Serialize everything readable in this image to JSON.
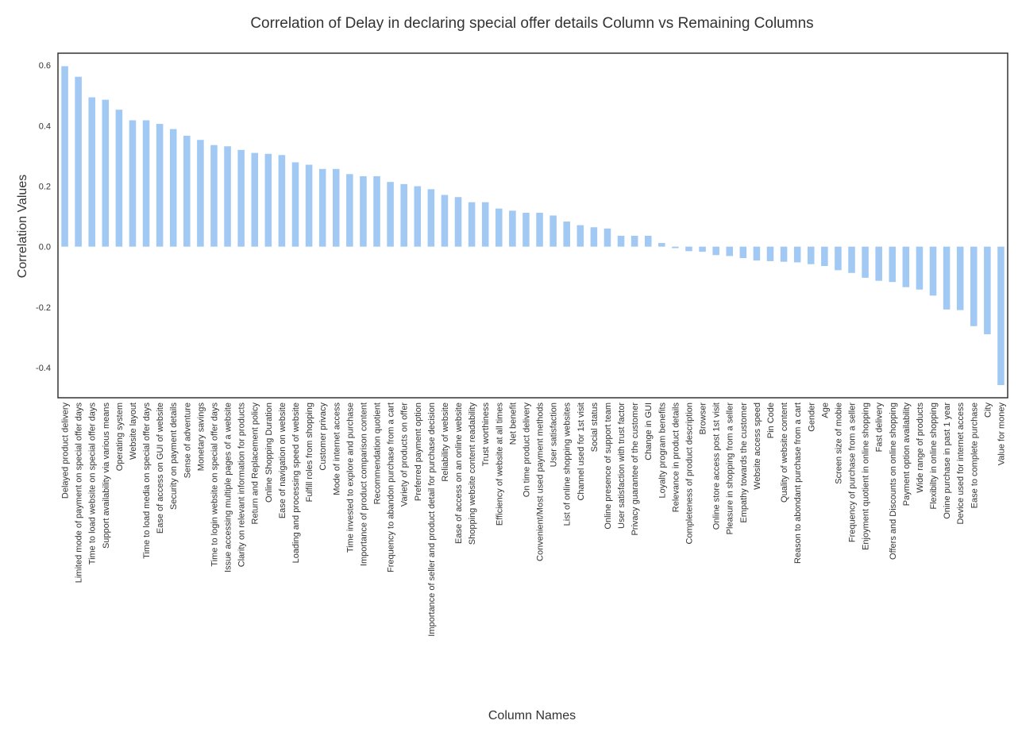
{
  "chart_data": {
    "type": "bar",
    "title": "Correlation of Delay in declaring special offer details Column vs Remaining Columns",
    "xlabel": "Column Names",
    "ylabel": "Correlation Values",
    "ylim": [
      -0.5,
      0.64
    ],
    "yticks": [
      "0.6",
      "0.4",
      "0.2",
      "0.0",
      "-0.2",
      "-0.4"
    ],
    "ytick_values": [
      0.6,
      0.4,
      0.2,
      0.0,
      -0.2,
      -0.4
    ],
    "grid": false,
    "legend": "none",
    "colors": {
      "bar": "#a1c9f4",
      "frame": "#333333",
      "text": "#333333"
    },
    "categories": [
      "Delayed product delivery",
      "Limited mode of payment on special offer days",
      "Time to load website on special offer days",
      "Support availability via various means",
      "Operating system",
      "Website layout",
      "Time to load media on special offer days",
      "Ease of access on GUI of website",
      "Security on payment details",
      "Sense of adventure",
      "Monetary savings",
      "Time to login website on special offer days",
      "Issue accessing multiple pages of a website",
      "Clarity on relevant information for products",
      "Return and Replacement policy",
      "Online Shopping Duration",
      "Ease of navigation on website",
      "Loading and processing speed of website",
      "Fulfill roles from shopping",
      "Customer privacy",
      "Mode of internet access",
      "Time invested to explore and purchase",
      "Importance of product comparison content",
      "Recommendation quotient",
      "Frequency to abandon purchase from a cart",
      "Variety of products on offer",
      "Preferred payment option",
      "Importance of seller and product detail for purchase decision",
      "Reliability of website",
      "Ease of access on an online website",
      "Shopping website content readability",
      "Trust worthiness",
      "Efficiency of website at all times",
      "Net benefit",
      "On time product delivery",
      "Convenient/Most used payment methods",
      "User satisfaction",
      "List of online shopping websites",
      "Channel used for 1st visit",
      "Social status",
      "Online presence of support team",
      "User satisfaction with trust factor",
      "Privacy guarantee of the customer",
      "Change in GUI",
      "Loyalty program benefits",
      "Relevance in product details",
      "Completeness of product description",
      "Browser",
      "Online store access post 1st visit",
      "Pleasure in shopping from a seller",
      "Empathy towards the customer",
      "Website access speed",
      "Pin Code",
      "Quality of website content",
      "Reason to abondant purchase from a cart",
      "Gender",
      "Age",
      "Screen size of mobie",
      "Frequency of purchase from a seller",
      "Enjoyment quotient in online shopping",
      "Fast delivery",
      "Offers and Discounts on online shopping",
      "Payment option availability",
      "Wide range of products",
      "Flexibilty in online shopping",
      "Onine purchase in past 1 year",
      "Device used for internet access",
      "Ease to complete purchase",
      "City",
      "Value for money"
    ],
    "values": [
      0.597,
      0.562,
      0.494,
      0.486,
      0.453,
      0.418,
      0.418,
      0.406,
      0.389,
      0.367,
      0.353,
      0.336,
      0.332,
      0.32,
      0.31,
      0.307,
      0.303,
      0.279,
      0.271,
      0.257,
      0.257,
      0.24,
      0.233,
      0.233,
      0.214,
      0.207,
      0.2,
      0.19,
      0.171,
      0.164,
      0.147,
      0.147,
      0.126,
      0.119,
      0.112,
      0.112,
      0.103,
      0.083,
      0.071,
      0.064,
      0.06,
      0.036,
      0.036,
      0.036,
      0.012,
      -0.005,
      -0.015,
      -0.017,
      -0.028,
      -0.031,
      -0.038,
      -0.046,
      -0.048,
      -0.05,
      -0.052,
      -0.058,
      -0.064,
      -0.078,
      -0.087,
      -0.103,
      -0.113,
      -0.117,
      -0.134,
      -0.142,
      -0.162,
      -0.208,
      -0.21,
      -0.263,
      -0.29,
      -0.458
    ]
  }
}
